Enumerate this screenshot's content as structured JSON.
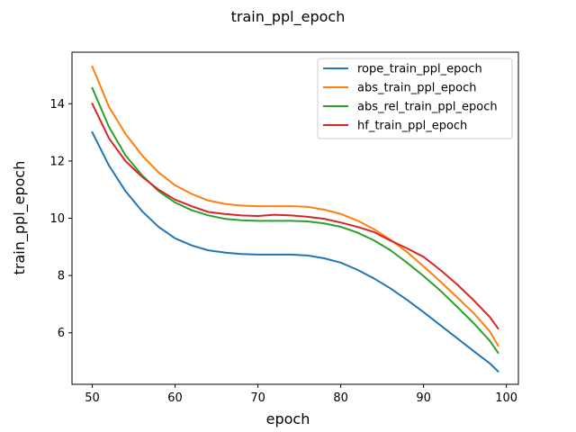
{
  "chart_data": {
    "type": "line",
    "title": "train_ppl_epoch",
    "xlabel": "epoch",
    "ylabel": "train_ppl_epoch",
    "xlim": [
      47.55,
      101.45
    ],
    "ylim": [
      4.2,
      15.8
    ],
    "xticks": [
      50,
      60,
      70,
      80,
      90,
      100
    ],
    "yticks": [
      6,
      8,
      10,
      12,
      14
    ],
    "grid": false,
    "legend_position": "top-right",
    "x": [
      50,
      52,
      54,
      56,
      58,
      60,
      62,
      64,
      66,
      68,
      70,
      72,
      74,
      76,
      78,
      80,
      82,
      84,
      86,
      88,
      90,
      92,
      94,
      96,
      98,
      99
    ],
    "series": [
      {
        "name": "rope_train_ppl_epoch",
        "color": "#1f77b4",
        "values": [
          13.0,
          11.85,
          10.95,
          10.25,
          9.7,
          9.3,
          9.05,
          8.88,
          8.8,
          8.75,
          8.73,
          8.73,
          8.73,
          8.7,
          8.6,
          8.45,
          8.2,
          7.9,
          7.55,
          7.15,
          6.72,
          6.27,
          5.82,
          5.37,
          4.93,
          4.65
        ]
      },
      {
        "name": "abs_train_ppl_epoch",
        "color": "#ff7f0e",
        "values": [
          15.3,
          13.9,
          12.95,
          12.2,
          11.6,
          11.15,
          10.85,
          10.62,
          10.5,
          10.44,
          10.42,
          10.42,
          10.42,
          10.4,
          10.3,
          10.15,
          9.92,
          9.62,
          9.25,
          8.82,
          8.32,
          7.8,
          7.25,
          6.7,
          6.05,
          5.55
        ]
      },
      {
        "name": "abs_rel_train_ppl_epoch",
        "color": "#2ca02c",
        "values": [
          14.55,
          13.2,
          12.2,
          11.5,
          10.95,
          10.55,
          10.28,
          10.1,
          9.98,
          9.93,
          9.91,
          9.91,
          9.91,
          9.89,
          9.82,
          9.7,
          9.5,
          9.23,
          8.88,
          8.45,
          7.98,
          7.48,
          6.92,
          6.35,
          5.72,
          5.3
        ]
      },
      {
        "name": "hf_train_ppl_epoch",
        "color": "#d62728",
        "values": [
          14.0,
          12.8,
          12.0,
          11.45,
          11.0,
          10.65,
          10.42,
          10.22,
          10.15,
          10.1,
          10.08,
          10.12,
          10.1,
          10.05,
          9.98,
          9.85,
          9.7,
          9.52,
          9.22,
          8.95,
          8.65,
          8.2,
          7.7,
          7.15,
          6.55,
          6.15
        ]
      }
    ]
  }
}
